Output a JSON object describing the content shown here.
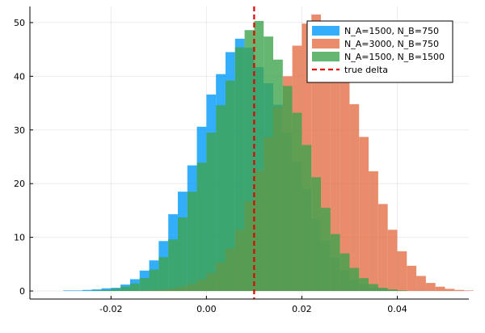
{
  "chart_data": {
    "type": "histogram",
    "title": "",
    "xlabel": "",
    "ylabel": "",
    "xlim": [
      -0.037,
      0.055
    ],
    "ylim": [
      -1.5,
      53
    ],
    "grid": true,
    "legend_position": "top-right",
    "bin_width": 0.002,
    "x_ticks": [
      -0.02,
      0.0,
      0.02,
      0.04
    ],
    "x_tick_labels": [
      "-0.02",
      "0.00",
      "0.02",
      "0.04"
    ],
    "y_ticks": [
      0,
      10,
      20,
      30,
      40,
      50
    ],
    "y_tick_labels": [
      "0",
      "10",
      "20",
      "30",
      "40",
      "50"
    ],
    "true_delta": 0.01,
    "series": [
      {
        "name": "N_A=1500, N_B=750",
        "color": "#009AFA",
        "opacity": 0.8,
        "bin_start": -0.03,
        "values": [
          0.1,
          0.1,
          0.2,
          0.3,
          0.5,
          0.6,
          1.2,
          2.2,
          3.8,
          5.7,
          9.3,
          14.3,
          18.5,
          23.4,
          30.6,
          36.6,
          40.4,
          44.5,
          47.0,
          45.3,
          41.7,
          38.7,
          34.7,
          29.5,
          24.1,
          19.0,
          13.4,
          9.4,
          6.2,
          3.9,
          2.1,
          1.3,
          0.7,
          0.4,
          0.2,
          0.1
        ]
      },
      {
        "name": "N_A=3000, N_B=750",
        "color": "#E26F46",
        "opacity": 0.8,
        "bin_start": -0.016,
        "values": [
          0.1,
          0.1,
          0.2,
          0.3,
          0.5,
          0.8,
          1.3,
          2.1,
          3.3,
          5.3,
          7.9,
          11.4,
          16.7,
          22.4,
          28.6,
          34.2,
          40.0,
          45.7,
          49.8,
          51.5,
          48.7,
          45.2,
          40.5,
          34.8,
          28.7,
          22.3,
          16.2,
          11.4,
          7.4,
          4.7,
          2.8,
          1.5,
          0.8,
          0.4,
          0.2,
          0.1
        ]
      },
      {
        "name": "N_A=1500, N_B=1500",
        "color": "#3DA44D",
        "opacity": 0.8,
        "bin_start": -0.024,
        "values": [
          0.1,
          0.2,
          0.4,
          0.8,
          1.4,
          2.4,
          4.0,
          6.3,
          9.6,
          13.7,
          18.5,
          23.9,
          29.5,
          34.6,
          39.2,
          45.4,
          48.6,
          50.3,
          47.4,
          43.1,
          38.2,
          33.2,
          27.2,
          21.2,
          15.5,
          10.6,
          7.0,
          4.3,
          2.4,
          1.3,
          0.6,
          0.3,
          0.1
        ]
      }
    ],
    "reference_line": {
      "name": "true delta",
      "value": 0.01,
      "color": "#E00000",
      "style": "dashed"
    }
  }
}
